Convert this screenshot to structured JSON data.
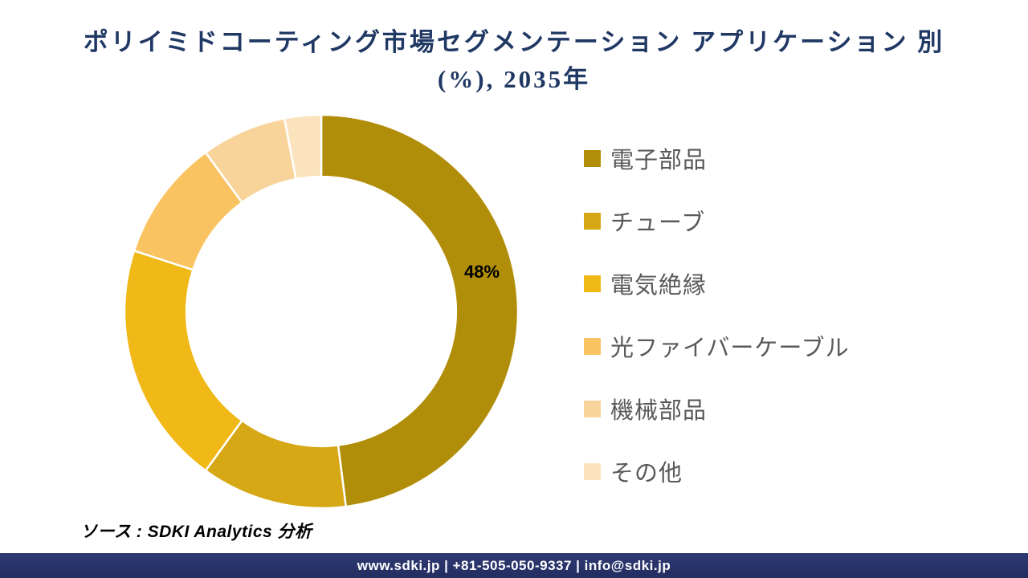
{
  "title": {
    "line1": "ポリイミドコーティング市場セグメンテーション アプリケーション 別",
    "line2": "(%), 2035年"
  },
  "chart_data": {
    "type": "pie",
    "subtype": "donut",
    "title": "ポリイミドコーティング市場セグメンテーション アプリケーション 別 (%), 2035年",
    "unit": "%",
    "categories": [
      "電子部品",
      "チューブ",
      "電気絶縁",
      "光ファイバーケーブル",
      "機械部品",
      "その他"
    ],
    "values": [
      48,
      12,
      20,
      10,
      7,
      3
    ],
    "colors": [
      "#B18E09",
      "#D6A816",
      "#F0B917",
      "#FAC361",
      "#F8D49B",
      "#FBE3BE"
    ],
    "value_labels": [
      "48%",
      null,
      null,
      null,
      null,
      null
    ],
    "start_angle_deg": 0,
    "direction": "clockwise",
    "inner_radius_ratio": 0.685,
    "grid": false,
    "legend_position": "right"
  },
  "legend": {
    "text_color": "#595959"
  },
  "labels": {
    "value_label_color": "#000000"
  },
  "source_note": "ソース : SDKI Analytics 分析",
  "footer": {
    "text": "www.sdki.jp | +81-505-050-9337 | info@sdki.jp",
    "bg_color_top": "#2F3A73",
    "bg_color_bottom": "#232D60"
  },
  "colors": {
    "title": "#203864",
    "background": "#FFFFFF"
  }
}
